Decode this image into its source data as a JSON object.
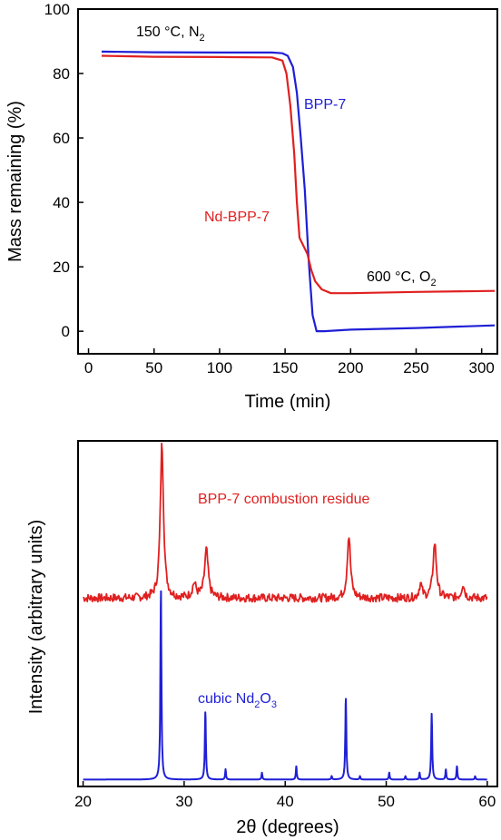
{
  "chart_data": [
    {
      "type": "line",
      "xlabel": "Time (min)",
      "ylabel": "Mass remaining (%)",
      "xlim": [
        -8,
        312
      ],
      "ylim": [
        -7,
        100
      ],
      "xticks": [
        0,
        50,
        100,
        150,
        200,
        250,
        300
      ],
      "yticks": [
        0,
        20,
        40,
        60,
        80,
        100
      ],
      "grid": false,
      "series": [
        {
          "name": "BPP-7",
          "color": "#1f1fd6",
          "x": [
            10,
            50,
            100,
            140,
            148,
            152,
            156,
            159,
            162,
            165,
            168,
            171,
            174,
            180,
            200,
            250,
            310
          ],
          "y": [
            86.8,
            86.6,
            86.5,
            86.5,
            86.3,
            85.5,
            82,
            74,
            60,
            44,
            22,
            5,
            0,
            0,
            0.5,
            1.0,
            1.8
          ]
        },
        {
          "name": "Nd-BPP-7",
          "color": "#e02020",
          "x": [
            10,
            50,
            100,
            140,
            148,
            151,
            154,
            157,
            159,
            161,
            164,
            167,
            170,
            173,
            178,
            185,
            200,
            250,
            310
          ],
          "y": [
            85.5,
            85.2,
            85.1,
            85.0,
            84.0,
            80,
            70,
            55,
            40,
            29,
            26.5,
            24,
            19,
            15.5,
            13,
            11.8,
            11.8,
            12.2,
            12.5
          ]
        }
      ],
      "annotations": [
        {
          "text": "150 °C, N",
          "sub": "2",
          "x": 15,
          "y": 94
        },
        {
          "text": "BPP-7",
          "x": 178,
          "y": 70,
          "color": "#1f1fd6"
        },
        {
          "text": "Nd-BPP-7",
          "x": 108,
          "y": 35.5,
          "color": "#e02020"
        },
        {
          "text": "600 °C, O",
          "sub": "2",
          "x": 228,
          "y": 16
        }
      ]
    },
    {
      "type": "line",
      "xlabel": "2θ (degrees)",
      "ylabel": "Intensity (arbitrary units)",
      "xlim": [
        19.5,
        61
      ],
      "xticks": [
        20,
        30,
        40,
        50,
        60
      ],
      "yticks": [],
      "grid": false,
      "series": [
        {
          "name": "BPP-7 combustion residue",
          "color": "#e02020",
          "baseline": 0.545,
          "noise": 0.012,
          "peaks": [
            {
              "pos": 27.8,
              "height": 0.45,
              "width": 0.38
            },
            {
              "pos": 31.0,
              "height": 0.04,
              "width": 0.45
            },
            {
              "pos": 32.2,
              "height": 0.14,
              "width": 0.42
            },
            {
              "pos": 46.3,
              "height": 0.18,
              "width": 0.38
            },
            {
              "pos": 53.4,
              "height": 0.04,
              "width": 0.35
            },
            {
              "pos": 54.8,
              "height": 0.16,
              "width": 0.4
            },
            {
              "pos": 57.6,
              "height": 0.04,
              "width": 0.35
            }
          ]
        },
        {
          "name": "cubic Nd2O3",
          "color": "#1f1fd6",
          "baseline": 0.02,
          "noise": 0,
          "peaks": [
            {
              "pos": 27.7,
              "height": 0.56,
              "width": 0.12
            },
            {
              "pos": 32.1,
              "height": 0.2,
              "width": 0.12
            },
            {
              "pos": 34.1,
              "height": 0.03,
              "width": 0.1
            },
            {
              "pos": 37.7,
              "height": 0.02,
              "width": 0.1
            },
            {
              "pos": 41.1,
              "height": 0.04,
              "width": 0.1
            },
            {
              "pos": 44.6,
              "height": 0.01,
              "width": 0.1
            },
            {
              "pos": 46.0,
              "height": 0.24,
              "width": 0.12
            },
            {
              "pos": 47.4,
              "height": 0.01,
              "width": 0.1
            },
            {
              "pos": 50.3,
              "height": 0.02,
              "width": 0.1
            },
            {
              "pos": 51.9,
              "height": 0.01,
              "width": 0.1
            },
            {
              "pos": 53.3,
              "height": 0.02,
              "width": 0.1
            },
            {
              "pos": 54.5,
              "height": 0.19,
              "width": 0.12
            },
            {
              "pos": 55.9,
              "height": 0.03,
              "width": 0.1
            },
            {
              "pos": 57.0,
              "height": 0.04,
              "width": 0.1
            },
            {
              "pos": 58.8,
              "height": 0.01,
              "width": 0.1
            }
          ]
        }
      ],
      "annotations": [
        {
          "text": "BPP-7 combustion residue",
          "color": "#e02020"
        },
        {
          "text": "cubic Nd",
          "sub1": "2",
          "mid": "O",
          "sub2": "3",
          "color": "#1f1fd6"
        }
      ]
    }
  ]
}
